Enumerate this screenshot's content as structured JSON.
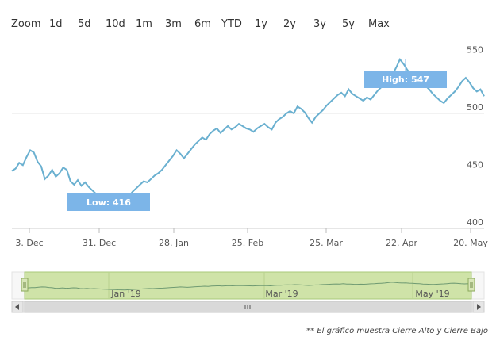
{
  "zoom": {
    "label": "Zoom",
    "buttons": [
      "1d",
      "5d",
      "10d",
      "1m",
      "3m",
      "6m",
      "YTD",
      "1y",
      "2y",
      "3y",
      "5y",
      "Max"
    ]
  },
  "footnote": "** El gráfico muestra Cierre Alto y Cierre Bajo",
  "colors": {
    "line": "#6ab0d0",
    "flag": "#7cb5e8",
    "grid": "#e6e6e6",
    "navigator_fill": "#cfe3a8",
    "navigator_border": "#a9c97a"
  },
  "chart_data": {
    "type": "line",
    "title": "",
    "xlabel": "",
    "ylabel": "",
    "x_tick_labels": [
      "3. Dec",
      "31. Dec",
      "28. Jan",
      "25. Feb",
      "25. Mar",
      "22. Apr",
      "20. May"
    ],
    "y_tick_labels": [
      "400",
      "450",
      "500",
      "550"
    ],
    "ylim": [
      400,
      560
    ],
    "grid": true,
    "series": [
      {
        "values": [
          450,
          452,
          457,
          455,
          462,
          468,
          466,
          458,
          454,
          443,
          446,
          451,
          445,
          448,
          453,
          451,
          441,
          438,
          442,
          437,
          440,
          436,
          433,
          430,
          428,
          425,
          423,
          420,
          418,
          416,
          421,
          425,
          428,
          432,
          435,
          438,
          441,
          440,
          443,
          446,
          448,
          451,
          455,
          459,
          463,
          468,
          465,
          461,
          465,
          469,
          473,
          476,
          479,
          477,
          482,
          485,
          487,
          483,
          486,
          489,
          486,
          488,
          491,
          489,
          487,
          486,
          484,
          487,
          489,
          491,
          488,
          486,
          492,
          495,
          497,
          500,
          502,
          500,
          506,
          504,
          501,
          496,
          492,
          497,
          500,
          503,
          507,
          510,
          513,
          516,
          518,
          515,
          521,
          517,
          515,
          513,
          511,
          514,
          512,
          516,
          520,
          523,
          527,
          530,
          534,
          540,
          547,
          543,
          538,
          534,
          536,
          531,
          528,
          524,
          521,
          517,
          514,
          511,
          509,
          513,
          516,
          519,
          523,
          528,
          531,
          527,
          522,
          519,
          521,
          515
        ]
      }
    ],
    "annotations": [
      {
        "label": "High: 547",
        "value": 547
      },
      {
        "label": "Low: 416",
        "value": 416
      }
    ],
    "navigator": {
      "tick_labels": [
        "Jan '19",
        "Mar '19",
        "May '19"
      ]
    }
  }
}
